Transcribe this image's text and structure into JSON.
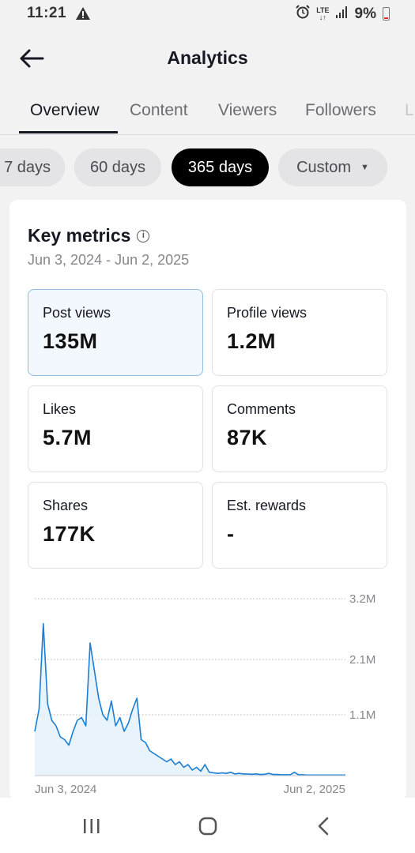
{
  "status_bar": {
    "time": "11:21",
    "lte_top": "LTE",
    "lte_bottom": "↓↑",
    "battery": "9%"
  },
  "header": {
    "title": "Analytics",
    "back_icon": "arrow-left-icon"
  },
  "tabs": [
    {
      "label": "Overview",
      "active": true
    },
    {
      "label": "Content",
      "active": false
    },
    {
      "label": "Viewers",
      "active": false
    },
    {
      "label": "Followers",
      "active": false
    },
    {
      "label": "L",
      "active": false
    }
  ],
  "date_filters": [
    {
      "label": "7 days",
      "active": false
    },
    {
      "label": "60 days",
      "active": false
    },
    {
      "label": "365 days",
      "active": true
    },
    {
      "label": "Custom",
      "active": false
    }
  ],
  "key_metrics": {
    "title": "Key metrics",
    "date_range": "Jun 3, 2024 - Jun 2, 2025",
    "metrics": [
      {
        "label": "Post views",
        "value": "135M",
        "selected": true
      },
      {
        "label": "Profile views",
        "value": "1.2M",
        "selected": false
      },
      {
        "label": "Likes",
        "value": "5.7M",
        "selected": false
      },
      {
        "label": "Comments",
        "value": "87K",
        "selected": false
      },
      {
        "label": "Shares",
        "value": "177K",
        "selected": false
      },
      {
        "label": "Est. rewards",
        "value": "-",
        "selected": false
      }
    ]
  },
  "chart_data": {
    "type": "area",
    "x_start": "Jun 3, 2024",
    "x_end": "Jun 2, 2025",
    "y_ticks": [
      "3.2M",
      "2.1M",
      "1.1M"
    ],
    "y_tick_values": [
      3200000,
      2100000,
      1100000
    ],
    "ylim": [
      0,
      3200000
    ],
    "grid": true,
    "color": "#1a7fd4",
    "values": [
      800000,
      1200000,
      2750000,
      1300000,
      1000000,
      900000,
      700000,
      650000,
      550000,
      800000,
      1000000,
      1050000,
      900000,
      2400000,
      1900000,
      1400000,
      1100000,
      1000000,
      1350000,
      900000,
      1050000,
      800000,
      950000,
      1200000,
      1400000,
      650000,
      600000,
      450000,
      400000,
      350000,
      300000,
      250000,
      300000,
      200000,
      250000,
      150000,
      200000,
      100000,
      150000,
      80000,
      200000,
      60000,
      50000,
      40000,
      50000,
      40000,
      60000,
      30000,
      40000,
      30000,
      30000,
      25000,
      30000,
      20000,
      25000,
      40000,
      20000,
      20000,
      15000,
      15000,
      15000,
      60000,
      15000,
      15000,
      10000,
      10000,
      10000,
      10000,
      10000,
      10000,
      10000,
      10000,
      10000,
      10000
    ]
  },
  "nav_bar": {
    "recents_icon": "recents-icon",
    "home_icon": "home-icon",
    "back_icon": "back-chevron-icon"
  }
}
